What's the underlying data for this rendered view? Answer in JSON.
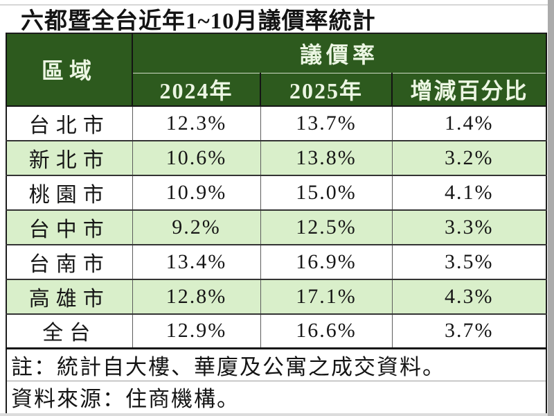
{
  "page": {
    "title": "六都暨全台近年1~10月議價率統計"
  },
  "table": {
    "region_header": "區域",
    "group_header": "議價率",
    "year_headers": [
      "2024年",
      "2025年"
    ],
    "diff_header": "增減百分比",
    "rows": [
      {
        "region": "台北市",
        "r2024": "12.3%",
        "r2025": "13.7%",
        "diff": "1.4%"
      },
      {
        "region": "新北市",
        "r2024": "10.6%",
        "r2025": "13.8%",
        "diff": "3.2%"
      },
      {
        "region": "桃園市",
        "r2024": "10.9%",
        "r2025": "15.0%",
        "diff": "4.1%"
      },
      {
        "region": "台中市",
        "r2024": "9.2%",
        "r2025": "12.5%",
        "diff": "3.3%"
      },
      {
        "region": "台南市",
        "r2024": "13.4%",
        "r2025": "16.9%",
        "diff": "3.5%"
      },
      {
        "region": "高雄市",
        "r2024": "12.8%",
        "r2025": "17.1%",
        "diff": "4.3%"
      },
      {
        "region": "全台",
        "r2024": "12.9%",
        "r2025": "16.6%",
        "diff": "3.7%"
      }
    ]
  },
  "notes": {
    "note": "註：統計自大樓、華廈及公寓之成交資料。",
    "source": "資料來源：住商機構。"
  },
  "colors": {
    "header_green": "#2d5a1e",
    "row_alt_green": "#d9efca",
    "header_text": "#ecf6e3",
    "body_text": "#161616"
  },
  "chart_data": {
    "type": "table",
    "title": "六都暨全台近年1~10月議價率統計",
    "column_group": "議價率",
    "columns": [
      "區域",
      "2024年",
      "2025年",
      "增減百分比"
    ],
    "unit": "%",
    "rows": [
      [
        "台北市",
        12.3,
        13.7,
        1.4
      ],
      [
        "新北市",
        10.6,
        13.8,
        3.2
      ],
      [
        "桃園市",
        10.9,
        15.0,
        4.1
      ],
      [
        "台中市",
        9.2,
        12.5,
        3.3
      ],
      [
        "台南市",
        13.4,
        16.9,
        3.5
      ],
      [
        "高雄市",
        12.8,
        17.1,
        4.3
      ],
      [
        "全台",
        12.9,
        16.6,
        3.7
      ]
    ],
    "notes": [
      "註：統計自大樓、華廈及公寓之成交資料。",
      "資料來源：住商機構。"
    ]
  }
}
